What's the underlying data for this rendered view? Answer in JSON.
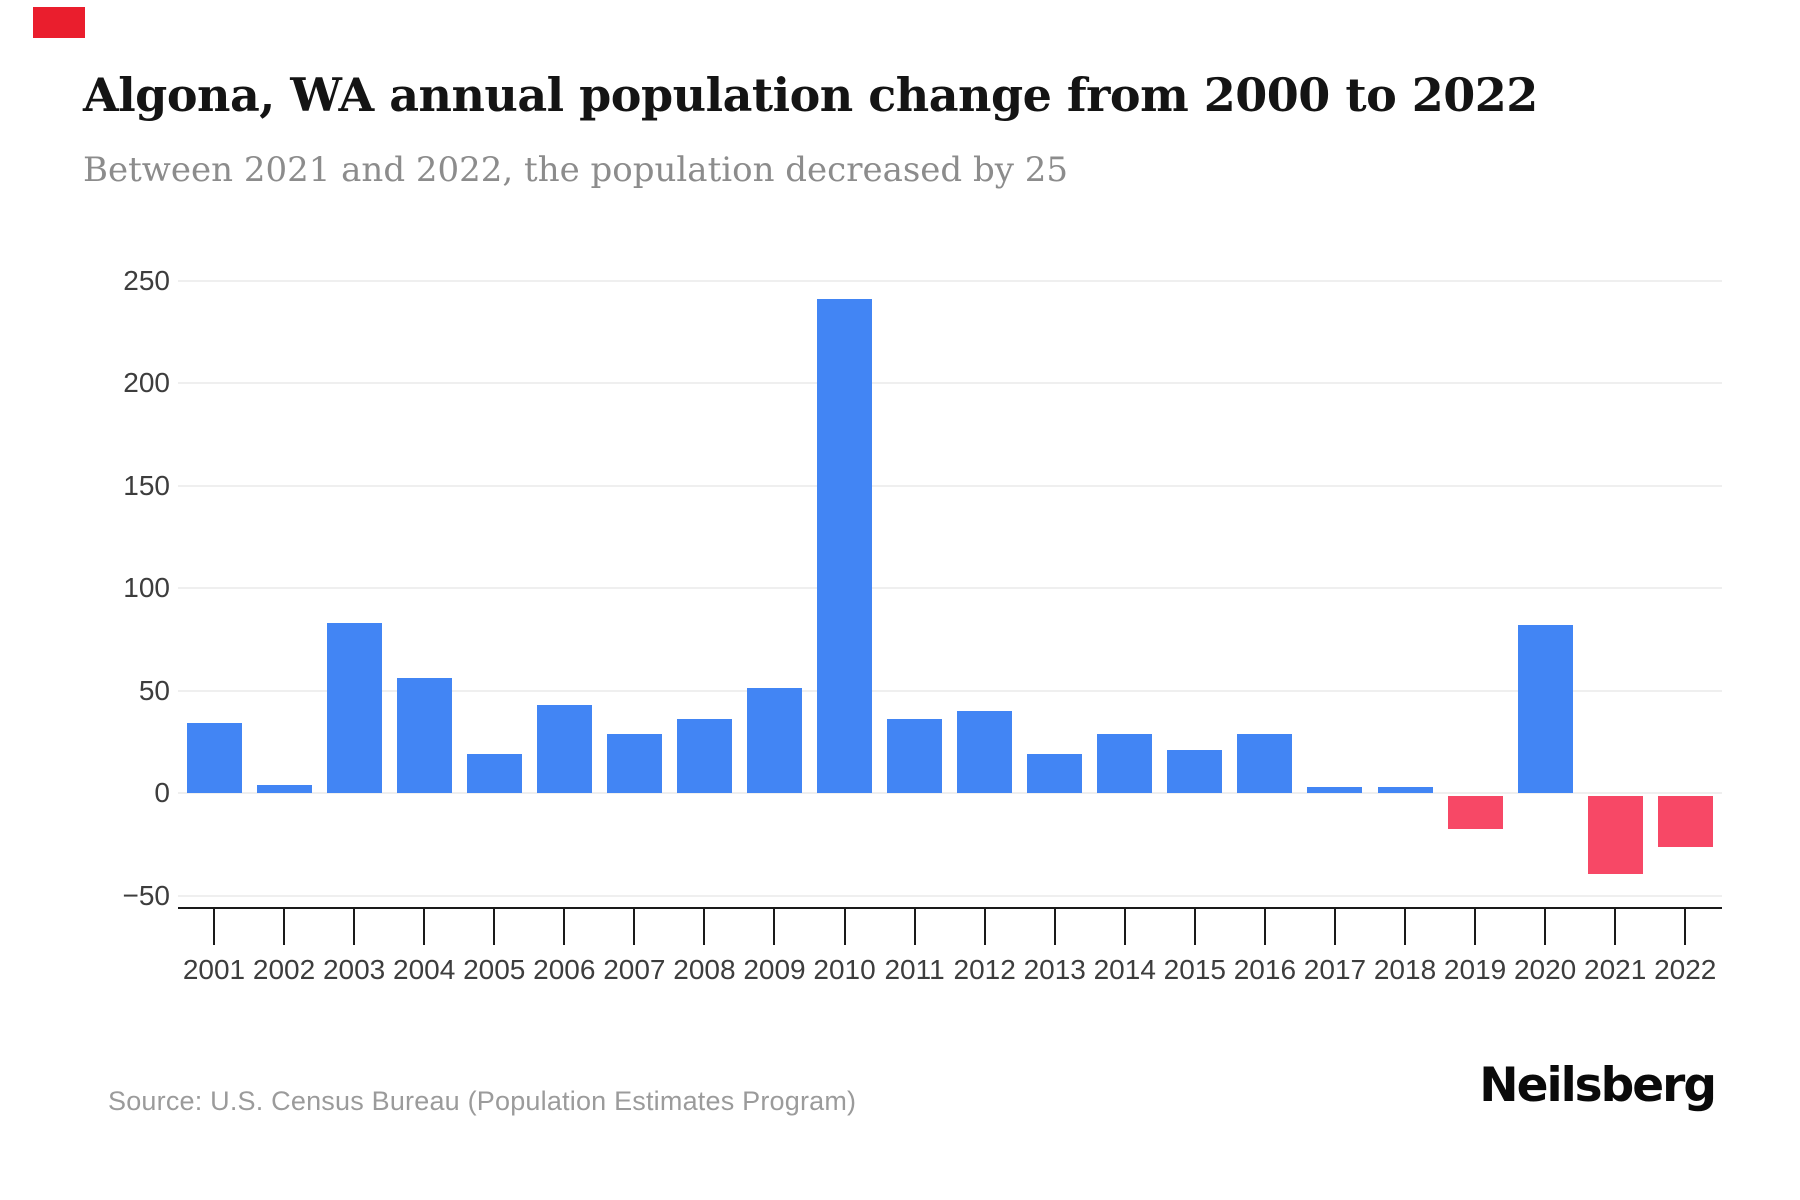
{
  "header": {
    "title": "Algona, WA annual population change from 2000 to 2022",
    "subtitle": "Between 2021 and 2022, the population decreased by 25"
  },
  "footer": {
    "source": "Source: U.S. Census Bureau (Population Estimates Program)",
    "brand": "Neilsberg"
  },
  "decor": {
    "corner_marker_color": "#ea1e2d"
  },
  "chart_data": {
    "type": "bar",
    "title": "Algona, WA annual population change from 2000 to 2022",
    "subtitle": "Between 2021 and 2022, the population decreased by 25",
    "categories": [
      "2001",
      "2002",
      "2003",
      "2004",
      "2005",
      "2006",
      "2007",
      "2008",
      "2009",
      "2010",
      "2011",
      "2012",
      "2013",
      "2014",
      "2015",
      "2016",
      "2017",
      "2018",
      "2019",
      "2020",
      "2021",
      "2022"
    ],
    "values": [
      34,
      4,
      83,
      56,
      19,
      43,
      29,
      36,
      51,
      241,
      36,
      40,
      19,
      29,
      21,
      29,
      3,
      3,
      -16,
      82,
      -38,
      -25
    ],
    "xlabel": "",
    "ylabel": "",
    "ylim": [
      -50,
      250
    ],
    "yticks": [
      250,
      200,
      150,
      100,
      50,
      0,
      -50
    ],
    "grid": "horizontal",
    "legend": "none",
    "positive_color": "#4285f4",
    "negative_color": "#f74866",
    "grid_color": "#efefef",
    "axis_color": "#1a1a1a",
    "tick_label_color": "#3d3d3d"
  }
}
